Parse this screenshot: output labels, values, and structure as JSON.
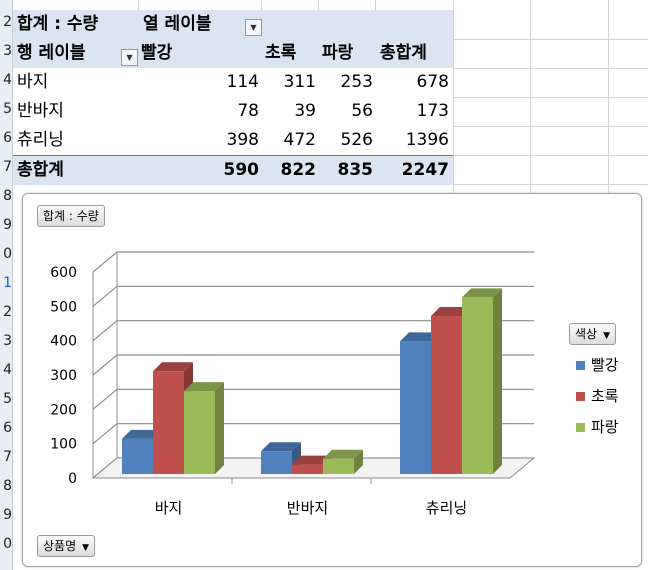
{
  "row_numbers": [
    "2",
    "3",
    "4",
    "5",
    "6",
    "7",
    "8",
    "9",
    "0",
    "1",
    "2",
    "3",
    "4",
    "5",
    "6",
    "7",
    "8",
    "9",
    "0"
  ],
  "pivot": {
    "title": "합계 : 수량",
    "col_label": "열 레이블",
    "row_label": "행 레이블",
    "headers": [
      "빨강",
      "초록",
      "파랑",
      "총합계"
    ],
    "rows": [
      {
        "label": "바지",
        "values": [
          "114",
          "311",
          "253",
          "678"
        ]
      },
      {
        "label": "반바지",
        "values": [
          "78",
          "39",
          "56",
          "173"
        ]
      },
      {
        "label": "츄리닝",
        "values": [
          "398",
          "472",
          "526",
          "1396"
        ]
      }
    ],
    "total": {
      "label": "총합계",
      "values": [
        "590",
        "822",
        "835",
        "2247"
      ]
    }
  },
  "chart": {
    "value_button": "합계 : 수량",
    "axis_button": "상품명",
    "legend_button": "색상"
  },
  "chart_data": {
    "type": "bar",
    "categories": [
      "바지",
      "반바지",
      "츄리닝"
    ],
    "series": [
      {
        "name": "빨강",
        "values": [
          114,
          78,
          398
        ],
        "color": "#4f81bd"
      },
      {
        "name": "초록",
        "values": [
          311,
          39,
          472
        ],
        "color": "#c0504d"
      },
      {
        "name": "파랑",
        "values": [
          253,
          56,
          526
        ],
        "color": "#9bbb59"
      }
    ],
    "ylim": [
      0,
      600
    ],
    "yticks": [
      "0",
      "100",
      "200",
      "300",
      "400",
      "500",
      "600"
    ],
    "grid": true,
    "legend": "right",
    "style": "3d-clustered-column"
  }
}
